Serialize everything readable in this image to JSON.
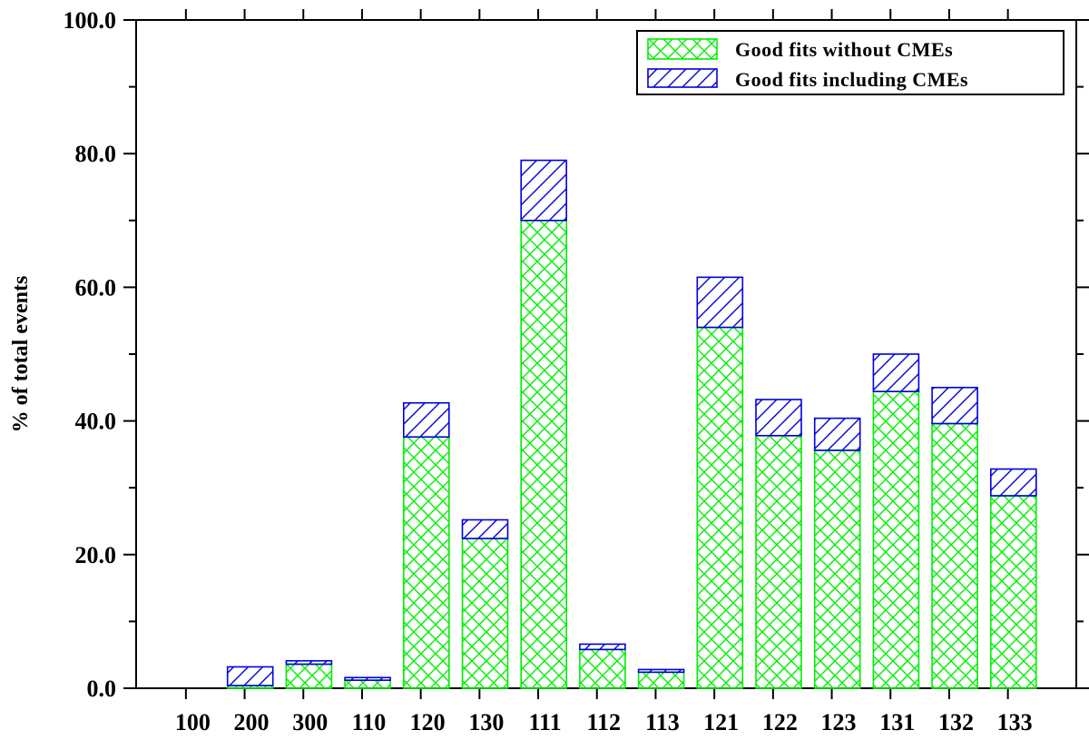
{
  "chart_data": {
    "type": "bar",
    "stacked": true,
    "title": "",
    "xlabel": "",
    "ylabel": "%   of total events",
    "ylim": [
      0,
      100
    ],
    "y_ticks": [
      "0.0",
      "20.0",
      "40.0",
      "60.0",
      "80.0",
      "100.0"
    ],
    "categories": [
      "100",
      "200",
      "300",
      "110",
      "120",
      "130",
      "111",
      "112",
      "113",
      "121",
      "122",
      "123",
      "131",
      "132",
      "133"
    ],
    "series": [
      {
        "name": "Good fits without CMEs",
        "color": "#00ee00",
        "pattern": "crosshatch",
        "values": [
          0,
          0.4,
          3.6,
          1.2,
          37.6,
          22.4,
          70.0,
          5.8,
          2.4,
          54.0,
          37.8,
          35.6,
          44.4,
          39.6,
          28.8
        ]
      },
      {
        "name": "Good fits including CMEs",
        "color": "#0000dd",
        "pattern": "diagonal",
        "values": [
          0,
          2.8,
          0.5,
          0.4,
          5.1,
          2.8,
          9.0,
          0.8,
          0.4,
          7.5,
          5.4,
          4.8,
          5.6,
          5.4,
          4.0
        ]
      }
    ],
    "legend_position": "top-right",
    "grid": false
  }
}
